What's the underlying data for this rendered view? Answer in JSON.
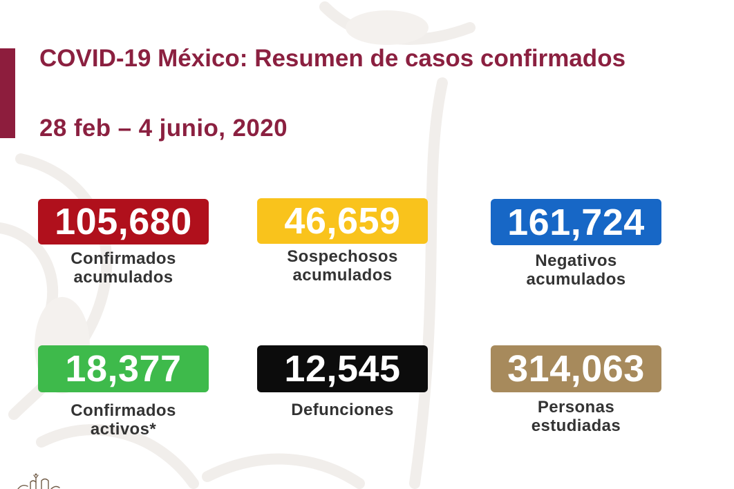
{
  "slide": {
    "title": "COVID-19 México: Resumen de casos confirmados",
    "date_range": "28 feb – 4 junio, 2020"
  },
  "colors": {
    "title": "#8b2040",
    "accent_bar": "#8d1d3d",
    "label_text": "#333333",
    "value_text": "#ffffff"
  },
  "stats": [
    {
      "value": "105,680",
      "label": [
        "Confirmados",
        "acumulados"
      ],
      "color": "#b0101c"
    },
    {
      "value": "46,659",
      "label": [
        "Sospechosos",
        "acumulados"
      ],
      "color": "#f9c31c"
    },
    {
      "value": "161,724",
      "label": [
        "Negativos",
        "acumulados"
      ],
      "color": "#1767c6"
    },
    {
      "value": "18,377",
      "label": [
        "Confirmados",
        "activos*"
      ],
      "color": "#3eba4b"
    },
    {
      "value": "12,545",
      "label": [
        "Defunciones"
      ],
      "color": "#0c0c0c"
    },
    {
      "value": "314,063",
      "label": [
        "Personas",
        "estudiadas"
      ],
      "color": "#a78a5c"
    }
  ],
  "icons": {
    "bottom_left_logo": "logo-icon"
  }
}
